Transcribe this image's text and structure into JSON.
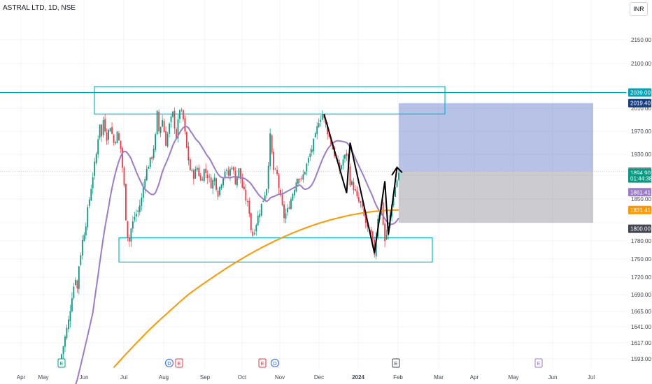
{
  "header": {
    "title": "ASTRAL LTD, 1D, NSE",
    "currency": "INR"
  },
  "chart_data": {
    "type": "candlestick",
    "symbol": "ASTRAL LTD",
    "interval": "1D",
    "exchange": "NSE",
    "x_ticks": [
      "Apr",
      "May",
      "Jun",
      "Jul",
      "Aug",
      "Sep",
      "Oct",
      "Nov",
      "Dec",
      "2024",
      "Feb",
      "Mar",
      "Apr",
      "May",
      "Jun",
      "Jul"
    ],
    "y_ticks": [
      "1593.00",
      "1617.00",
      "1641.00",
      "1665.00",
      "1690.00",
      "1720.00",
      "1750.00",
      "1780.00",
      "1810.00",
      "1850.00",
      "1890.00",
      "1930.00",
      "1970.00",
      "2010.00",
      "2050.00",
      "2100.00",
      "2150.00"
    ],
    "visible_ticks_index": [
      0,
      1,
      2,
      3,
      4,
      5,
      6,
      7,
      9,
      10,
      11,
      12,
      13,
      15,
      16
    ],
    "ylim": [
      1580,
      2200
    ],
    "price_labels": [
      {
        "text": "2039.00",
        "value": 2039,
        "color": "#00a2b5"
      },
      {
        "text": "2019.40",
        "value": 2019.4,
        "color": "#173e80"
      },
      {
        "text": "1897.30",
        "value": 1897.3,
        "color": "#9598a1"
      },
      {
        "text": "1894.90",
        "value": 1894.9,
        "color": "#089981"
      },
      {
        "text": "01:44:38",
        "value": 1884.5,
        "color": "#089981"
      },
      {
        "text": "1861.41",
        "value": 1861.41,
        "color": "#9c7bc9"
      },
      {
        "text": "1831.41",
        "value": 1831.41,
        "color": "#ff9800"
      },
      {
        "text": "1800.00",
        "value": 1800,
        "color": "#434651"
      }
    ],
    "moving_average_1": {
      "color": "#9c7bc9",
      "last": 1861.41
    },
    "moving_average_2": {
      "color": "#ff9800",
      "last": 1831.41
    },
    "last_price": 1894.9,
    "ohlc_shape": [
      [
        0,
        1600
      ],
      [
        4,
        1650
      ],
      [
        6,
        1690
      ],
      [
        8,
        1720
      ],
      [
        9,
        1700
      ],
      [
        10,
        1740
      ],
      [
        12,
        1780
      ],
      [
        14,
        1810
      ],
      [
        16,
        1850
      ],
      [
        18,
        1890
      ],
      [
        20,
        1930
      ],
      [
        21,
        1960
      ],
      [
        22,
        1985
      ],
      [
        23,
        1960
      ],
      [
        24,
        1990
      ],
      [
        26,
        1960
      ],
      [
        28,
        1980
      ],
      [
        30,
        1950
      ],
      [
        32,
        1965
      ],
      [
        34,
        1940
      ],
      [
        36,
        1870
      ],
      [
        37,
        1820
      ],
      [
        38,
        1790
      ],
      [
        39,
        1780
      ],
      [
        40,
        1800
      ],
      [
        42,
        1820
      ],
      [
        44,
        1830
      ],
      [
        46,
        1850
      ],
      [
        48,
        1890
      ],
      [
        50,
        1910
      ],
      [
        52,
        1925
      ],
      [
        54,
        1960
      ],
      [
        55,
        2000
      ],
      [
        56,
        1970
      ],
      [
        58,
        1990
      ],
      [
        60,
        1950
      ],
      [
        62,
        1980
      ],
      [
        64,
        2000
      ],
      [
        66,
        1960
      ],
      [
        68,
        2010
      ],
      [
        70,
        1990
      ],
      [
        72,
        1940
      ],
      [
        74,
        1900
      ],
      [
        76,
        1890
      ],
      [
        78,
        1905
      ],
      [
        80,
        1880
      ],
      [
        82,
        1900
      ],
      [
        84,
        1890
      ],
      [
        86,
        1875
      ],
      [
        88,
        1885
      ],
      [
        90,
        1860
      ],
      [
        92,
        1880
      ],
      [
        94,
        1900
      ],
      [
        96,
        1890
      ],
      [
        98,
        1910
      ],
      [
        100,
        1880
      ],
      [
        102,
        1900
      ],
      [
        104,
        1870
      ],
      [
        106,
        1850
      ],
      [
        108,
        1830
      ],
      [
        109,
        1800
      ],
      [
        110,
        1790
      ],
      [
        112,
        1810
      ],
      [
        114,
        1830
      ],
      [
        116,
        1850
      ],
      [
        118,
        1870
      ],
      [
        120,
        1960
      ],
      [
        122,
        1900
      ],
      [
        124,
        1890
      ],
      [
        126,
        1850
      ],
      [
        128,
        1820
      ],
      [
        130,
        1830
      ],
      [
        132,
        1850
      ],
      [
        134,
        1870
      ],
      [
        136,
        1890
      ],
      [
        138,
        1880
      ],
      [
        140,
        1900
      ],
      [
        142,
        1920
      ],
      [
        144,
        1940
      ],
      [
        146,
        1960
      ],
      [
        148,
        1990
      ],
      [
        150,
        2000
      ],
      [
        152,
        1980
      ],
      [
        154,
        1960
      ],
      [
        156,
        1940
      ],
      [
        158,
        1920
      ],
      [
        160,
        1900
      ],
      [
        162,
        1920
      ],
      [
        164,
        1930
      ],
      [
        166,
        1880
      ],
      [
        168,
        1870
      ],
      [
        170,
        1850
      ],
      [
        172,
        1840
      ],
      [
        174,
        1820
      ],
      [
        176,
        1800
      ],
      [
        178,
        1790
      ],
      [
        180,
        1760
      ],
      [
        182,
        1820
      ],
      [
        184,
        1840
      ],
      [
        186,
        1780
      ],
      [
        188,
        1800
      ],
      [
        190,
        1840
      ],
      [
        192,
        1870
      ],
      [
        194,
        1895
      ]
    ],
    "annotations": {
      "horizontal_line": 2039,
      "top_zone": [
        2000,
        2050
      ],
      "bottom_zone": [
        1745,
        1785
      ],
      "target_zone": [
        1897.3,
        2019.4
      ],
      "stop_zone": [
        1810,
        1897.3
      ]
    },
    "event_markers": [
      {
        "label": "E",
        "color": "#089981"
      },
      {
        "label": "D",
        "color": "#2962ff"
      },
      {
        "label": "E",
        "color": "#f23645"
      },
      {
        "label": "E",
        "color": "#f23645"
      },
      {
        "label": "D",
        "color": "#2962ff"
      },
      {
        "label": "E",
        "color": "#434651"
      },
      {
        "label": "E",
        "color": "#9c7bc9"
      }
    ]
  }
}
